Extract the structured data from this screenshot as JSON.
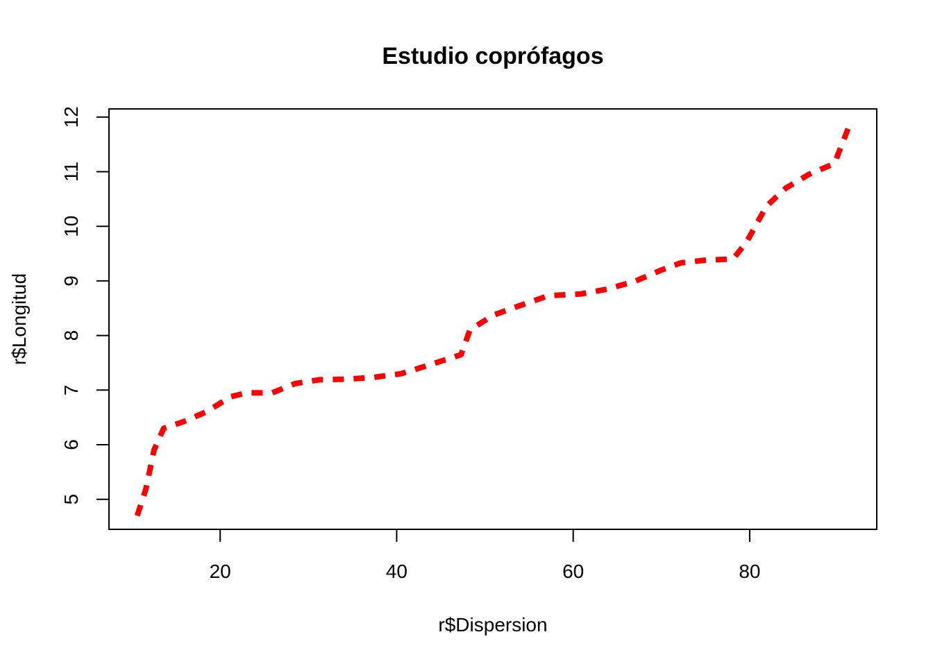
{
  "chart_data": {
    "type": "line",
    "title": "Estudio coprófagos",
    "xlabel": "r$Dispersion",
    "ylabel": "r$Longitud",
    "xlim": [
      7.4,
      94.4
    ],
    "ylim": [
      4.45,
      12.15
    ],
    "xticks": [
      20,
      40,
      60,
      80
    ],
    "yticks": [
      5,
      6,
      7,
      8,
      9,
      10,
      11,
      12
    ],
    "line_style": "dashed",
    "line_color": "#ff0000",
    "grid": false,
    "legend": "none",
    "series": [
      {
        "x": [
          10.6,
          11.6,
          12.5,
          13.6,
          15.8,
          18.4,
          21.2,
          23.0,
          25.9,
          28.5,
          31.2,
          34.2,
          37.2,
          40.5,
          43.5,
          47.3,
          48.3,
          50.9,
          54.0,
          57.2,
          60.8,
          63.9,
          67.1,
          70.0,
          72.2,
          75.0,
          78.1,
          79.6,
          81.9,
          84.1,
          86.7,
          89.6,
          91.3
        ],
        "y": [
          4.7,
          5.2,
          5.9,
          6.3,
          6.42,
          6.6,
          6.88,
          6.95,
          6.95,
          7.12,
          7.19,
          7.2,
          7.23,
          7.3,
          7.45,
          7.65,
          8.1,
          8.37,
          8.55,
          8.73,
          8.76,
          8.85,
          9.0,
          9.2,
          9.33,
          9.38,
          9.4,
          9.7,
          10.37,
          10.7,
          10.95,
          11.15,
          11.85
        ]
      }
    ]
  }
}
